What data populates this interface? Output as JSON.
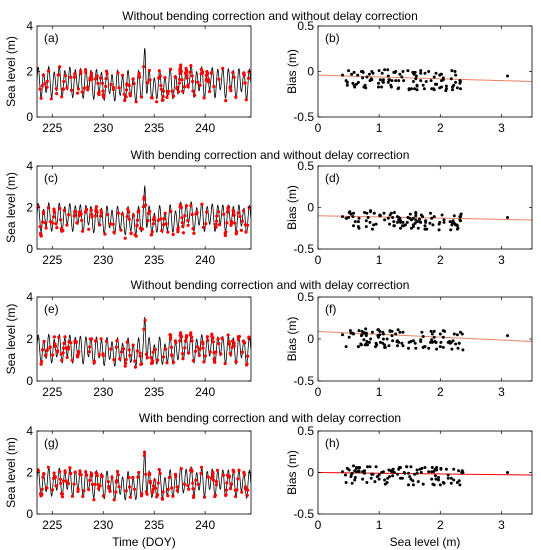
{
  "figure": {
    "xlabel_time": "Time (DOY)",
    "xlabel_sea": "Sea level (m)"
  },
  "chart_data": [
    {
      "type": "line",
      "title": "Without bending correction and without delay correction",
      "panel_label": "(a)",
      "ylabel": "Sea level (m)",
      "xlim": [
        223.5,
        244.5
      ],
      "ylim": [
        0,
        4
      ],
      "xticks": [
        225,
        230,
        235,
        240
      ],
      "yticks": [
        0,
        2,
        4
      ],
      "series": [
        {
          "name": "",
          "kind": "modelled tide",
          "color": "#000000",
          "x": [],
          "y": []
        },
        {
          "name": "",
          "kind": "retrieval points",
          "color": "#ff0000",
          "x": [],
          "y": []
        }
      ]
    },
    {
      "type": "scatter",
      "panel_label": "(b)",
      "ylabel": "Bias (m)",
      "xlim": [
        0,
        3.5
      ],
      "ylim": [
        -0.5,
        0.5
      ],
      "xticks": [
        0,
        1,
        2,
        3
      ],
      "yticks": [
        -0.5,
        0,
        0.5
      ],
      "trend": {
        "color": "#f08060",
        "x": [
          0,
          3.5
        ],
        "y": [
          -0.04,
          -0.11
        ]
      },
      "points": {
        "x": [],
        "y": []
      }
    },
    {
      "type": "line",
      "title": "With bending correction and without delay correction",
      "panel_label": "(c)",
      "ylabel": "Sea level (m)",
      "xlim": [
        223.5,
        244.5
      ],
      "ylim": [
        0,
        4
      ],
      "xticks": [
        225,
        230,
        235,
        240
      ],
      "yticks": [
        0,
        2,
        4
      ],
      "series": [
        {
          "name": "",
          "kind": "modelled tide",
          "color": "#000000",
          "x": [],
          "y": []
        },
        {
          "name": "",
          "kind": "retrieval points",
          "color": "#ff0000",
          "x": [],
          "y": []
        }
      ]
    },
    {
      "type": "scatter",
      "panel_label": "(d)",
      "ylabel": "Bias (m)",
      "xlim": [
        0,
        3.5
      ],
      "ylim": [
        -0.5,
        0.5
      ],
      "xticks": [
        0,
        1,
        2,
        3
      ],
      "yticks": [
        -0.5,
        0,
        0.5
      ],
      "trend": {
        "color": "#f08060",
        "x": [
          0,
          3.5
        ],
        "y": [
          -0.1,
          -0.15
        ]
      },
      "points": {
        "x": [],
        "y": []
      }
    },
    {
      "type": "line",
      "title": "Without bending correction and with delay correction",
      "panel_label": "(e)",
      "ylabel": "Sea level (m)",
      "xlim": [
        223.5,
        244.5
      ],
      "ylim": [
        0,
        4
      ],
      "xticks": [
        225,
        230,
        235,
        240
      ],
      "yticks": [
        0,
        2,
        4
      ],
      "series": [
        {
          "name": "",
          "kind": "modelled tide",
          "color": "#000000",
          "x": [],
          "y": []
        },
        {
          "name": "",
          "kind": "retrieval points",
          "color": "#ff0000",
          "x": [],
          "y": []
        }
      ]
    },
    {
      "type": "scatter",
      "panel_label": "(f)",
      "ylabel": "Bias (m)",
      "xlim": [
        0,
        3.5
      ],
      "ylim": [
        -0.5,
        0.5
      ],
      "xticks": [
        0,
        1,
        2,
        3
      ],
      "yticks": [
        -0.5,
        0,
        0.5
      ],
      "trend": {
        "color": "#f08060",
        "x": [
          0,
          3.5
        ],
        "y": [
          0.09,
          -0.03
        ]
      },
      "points": {
        "x": [],
        "y": []
      }
    },
    {
      "type": "line",
      "title": "With bending correction and with delay correction",
      "panel_label": "(g)",
      "ylabel": "Sea level (m)",
      "xlim": [
        223.5,
        244.5
      ],
      "ylim": [
        0,
        4
      ],
      "xticks": [
        225,
        230,
        235,
        240
      ],
      "yticks": [
        0,
        2,
        4
      ],
      "series": [
        {
          "name": "",
          "kind": "modelled tide",
          "color": "#000000",
          "x": [],
          "y": []
        },
        {
          "name": "",
          "kind": "retrieval points",
          "color": "#ff0000",
          "x": [],
          "y": []
        }
      ]
    },
    {
      "type": "scatter",
      "panel_label": "(h)",
      "ylabel": "Bias (m)",
      "xlim": [
        0,
        3.5
      ],
      "ylim": [
        -0.5,
        0.5
      ],
      "xticks": [
        0,
        1,
        2,
        3
      ],
      "yticks": [
        -0.5,
        0,
        0.5
      ],
      "trend": {
        "color": "#ff0000",
        "x": [
          0,
          3.5
        ],
        "y": [
          0.0,
          -0.03
        ]
      },
      "points": {
        "x": [],
        "y": []
      }
    }
  ]
}
